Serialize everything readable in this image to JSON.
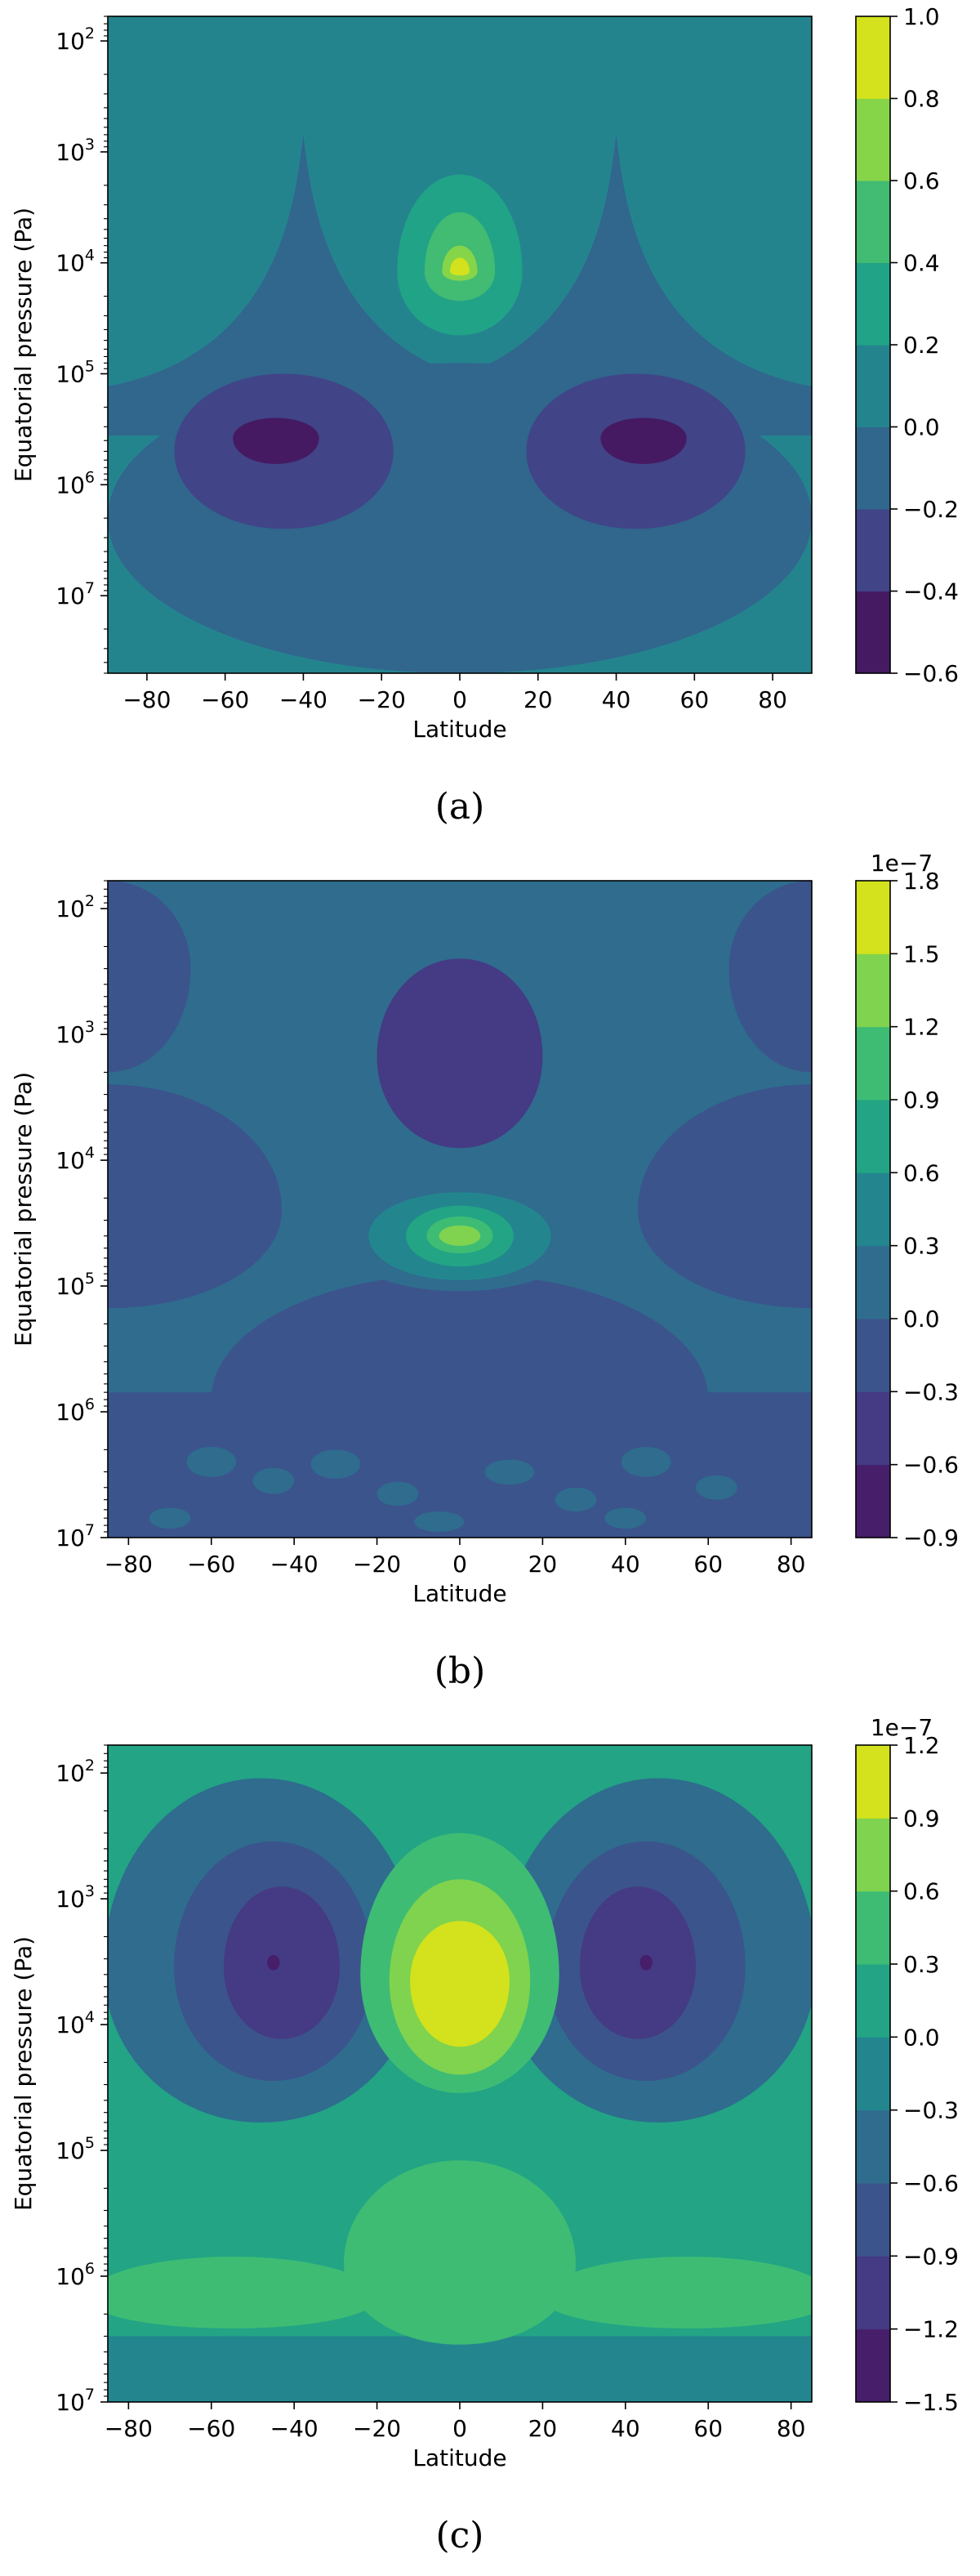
{
  "chart_data": [
    {
      "type": "heatmap",
      "caption": "(a)",
      "xlabel": "Latitude",
      "ylabel": "Equatorial pressure (Pa)",
      "xlim": [
        -90,
        90
      ],
      "xticks": [
        -80,
        -60,
        -40,
        -20,
        0,
        20,
        40,
        60,
        80
      ],
      "y_scale": "log",
      "ylim": [
        50000000.0,
        60
      ],
      "yticks": [
        100,
        1000,
        10000,
        100000,
        1000000,
        10000000
      ],
      "ytick_labels": [
        {
          "b": "10",
          "e": "2"
        },
        {
          "b": "10",
          "e": "3"
        },
        {
          "b": "10",
          "e": "4"
        },
        {
          "b": "10",
          "e": "5"
        },
        {
          "b": "10",
          "e": "6"
        },
        {
          "b": "10",
          "e": "7"
        }
      ],
      "background_level": 3,
      "colorbar": {
        "levels": [
          -0.6,
          -0.4,
          -0.2,
          0.0,
          0.2,
          0.4,
          0.6,
          0.8,
          1.0
        ],
        "labels": [
          "-0.6",
          "-0.4",
          "-0.2",
          "0.0",
          "0.2",
          "0.4",
          "0.6",
          "0.8",
          "1.0"
        ],
        "colors": [
          "#451a62",
          "#414487",
          "#31668d",
          "#24848e",
          "#21a387",
          "#42bb73",
          "#86d549",
          "#d3e21c"
        ],
        "offset": ""
      },
      "features": [
        {
          "level": 2,
          "shape": "cone",
          "lat": -40,
          "p_top": 700,
          "p_base": 130000,
          "half_width_base": 50
        },
        {
          "level": 2,
          "shape": "cone",
          "lat": 40,
          "p_top": 700,
          "p_base": 130000,
          "half_width_base": 50
        },
        {
          "level": 2,
          "shape": "blob",
          "lat": 0,
          "p": 2000000,
          "half_width": 90,
          "p_min": 80000,
          "p_max": 50000000
        },
        {
          "level": 1,
          "shape": "blob",
          "lat": -45,
          "p": 500000,
          "half_width": 28,
          "p_min": 100000,
          "p_max": 2500000
        },
        {
          "level": 1,
          "shape": "blob",
          "lat": 45,
          "p": 500000,
          "half_width": 28,
          "p_min": 100000,
          "p_max": 2500000
        },
        {
          "level": 0,
          "shape": "blob",
          "lat": -47,
          "p": 380000,
          "half_width": 11,
          "p_min": 250000,
          "p_max": 650000
        },
        {
          "level": 0,
          "shape": "blob",
          "lat": 47,
          "p": 380000,
          "half_width": 11,
          "p_min": 250000,
          "p_max": 650000
        },
        {
          "level": 4,
          "shape": "blob",
          "lat": 0,
          "p": 12000,
          "half_width": 16,
          "p_min": 1600,
          "p_max": 45000
        },
        {
          "level": 5,
          "shape": "blob",
          "lat": 0,
          "p": 12000,
          "half_width": 9,
          "p_min": 3500,
          "p_max": 22000
        },
        {
          "level": 6,
          "shape": "blob",
          "lat": 0,
          "p": 12000,
          "half_width": 4.5,
          "p_min": 7000,
          "p_max": 14500
        },
        {
          "level": 7,
          "shape": "blob",
          "lat": 0,
          "p": 12000,
          "half_width": 2.5,
          "p_min": 9000,
          "p_max": 13000
        }
      ]
    },
    {
      "type": "heatmap",
      "caption": "(b)",
      "xlabel": "Latitude",
      "ylabel": "Equatorial pressure (Pa)",
      "xlim": [
        -85,
        85
      ],
      "xticks": [
        -80,
        -60,
        -40,
        -20,
        0,
        20,
        40,
        60,
        80
      ],
      "y_scale": "log",
      "ylim": [
        10000000.0,
        60
      ],
      "yticks": [
        100,
        1000,
        10000,
        100000,
        1000000,
        10000000
      ],
      "ytick_labels": [
        {
          "b": "10",
          "e": "2"
        },
        {
          "b": "10",
          "e": "3"
        },
        {
          "b": "10",
          "e": "4"
        },
        {
          "b": "10",
          "e": "5"
        },
        {
          "b": "10",
          "e": "6"
        },
        {
          "b": "10",
          "e": "7"
        }
      ],
      "background_level": 3,
      "colorbar": {
        "levels": [
          -0.9,
          -0.6,
          -0.3,
          0.0,
          0.3,
          0.6,
          0.9,
          1.2,
          1.5,
          1.8
        ],
        "labels": [
          "-0.9",
          "-0.6",
          "-0.3",
          "0.0",
          "0.3",
          "0.6",
          "0.9",
          "1.2",
          "1.5",
          "1.8"
        ],
        "colors": [
          "#461e6a",
          "#453a84",
          "#3b548c",
          "#2f6c8e",
          "#23868e",
          "#22a485",
          "#3ebc74",
          "#7fd34e",
          "#d3e21c"
        ],
        "offset": "1e-7"
      },
      "features": [
        {
          "level": 2,
          "shape": "band",
          "p_min": 700000,
          "p_max": 1000000000
        },
        {
          "level": 2,
          "shape": "blob",
          "lat": 0,
          "p": 800000,
          "half_width": 60,
          "p_min": 80000,
          "p_max": 2500000
        },
        {
          "level": 2,
          "shape": "blob",
          "lat": -85,
          "p": 25000,
          "half_width": 42,
          "p_min": 2500,
          "p_max": 150000
        },
        {
          "level": 2,
          "shape": "blob",
          "lat": 85,
          "p": 25000,
          "half_width": 42,
          "p_min": 2500,
          "p_max": 150000
        },
        {
          "level": 2,
          "shape": "blob",
          "lat": -85,
          "p": 300,
          "half_width": 20,
          "p_min": 60,
          "p_max": 2000
        },
        {
          "level": 2,
          "shape": "blob",
          "lat": 85,
          "p": 300,
          "half_width": 20,
          "p_min": 60,
          "p_max": 2000
        },
        {
          "level": 3,
          "shape": "blob",
          "lat": 0,
          "p": 800,
          "half_width": 48,
          "p_min": 60,
          "p_max": 40000
        },
        {
          "level": 1,
          "shape": "blob",
          "lat": 0,
          "p": 1500,
          "half_width": 20,
          "p_min": 250,
          "p_max": 8000
        },
        {
          "level": 3,
          "shape": "blob",
          "lat": 0,
          "p": 40000,
          "half_width": 30,
          "p_min": 15000,
          "p_max": 110000
        },
        {
          "level": 4,
          "shape": "blob",
          "lat": 0,
          "p": 40000,
          "half_width": 22,
          "p_min": 18000,
          "p_max": 90000
        },
        {
          "level": 5,
          "shape": "blob",
          "lat": 0,
          "p": 40000,
          "half_width": 13,
          "p_min": 23000,
          "p_max": 70000
        },
        {
          "level": 6,
          "shape": "blob",
          "lat": 0,
          "p": 40000,
          "half_width": 8,
          "p_min": 28000,
          "p_max": 55000
        },
        {
          "level": 7,
          "shape": "blob",
          "lat": 0,
          "p": 40000,
          "half_width": 5,
          "p_min": 33000,
          "p_max": 48000
        },
        {
          "level": 3,
          "shape": "blob",
          "lat": -60,
          "p": 2500000,
          "half_width": 6,
          "p_min": 1900000,
          "p_max": 3300000
        },
        {
          "level": 3,
          "shape": "blob",
          "lat": -45,
          "p": 3500000,
          "half_width": 5,
          "p_min": 2800000,
          "p_max": 4500000
        },
        {
          "level": 3,
          "shape": "blob",
          "lat": -30,
          "p": 2600000,
          "half_width": 6,
          "p_min": 2000000,
          "p_max": 3400000
        },
        {
          "level": 3,
          "shape": "blob",
          "lat": -15,
          "p": 4500000,
          "half_width": 5,
          "p_min": 3600000,
          "p_max": 5600000
        },
        {
          "level": 3,
          "shape": "blob",
          "lat": 12,
          "p": 3000000,
          "half_width": 6,
          "p_min": 2400000,
          "p_max": 3800000
        },
        {
          "level": 3,
          "shape": "blob",
          "lat": 28,
          "p": 5000000,
          "half_width": 5,
          "p_min": 4000000,
          "p_max": 6200000
        },
        {
          "level": 3,
          "shape": "blob",
          "lat": 45,
          "p": 2500000,
          "half_width": 6,
          "p_min": 1900000,
          "p_max": 3300000
        },
        {
          "level": 3,
          "shape": "blob",
          "lat": 62,
          "p": 4000000,
          "half_width": 5,
          "p_min": 3200000,
          "p_max": 5000000
        },
        {
          "level": 3,
          "shape": "blob",
          "lat": -70,
          "p": 7000000,
          "half_width": 5,
          "p_min": 5800000,
          "p_max": 8500000
        },
        {
          "level": 3,
          "shape": "blob",
          "lat": -5,
          "p": 7500000,
          "half_width": 6,
          "p_min": 6200000,
          "p_max": 9000000
        },
        {
          "level": 3,
          "shape": "blob",
          "lat": 40,
          "p": 7000000,
          "half_width": 5,
          "p_min": 5800000,
          "p_max": 8500000
        }
      ]
    },
    {
      "type": "heatmap",
      "caption": "(c)",
      "xlabel": "Latitude",
      "ylabel": "Equatorial pressure (Pa)",
      "xlim": [
        -85,
        85
      ],
      "xticks": [
        -80,
        -60,
        -40,
        -20,
        0,
        20,
        40,
        60,
        80
      ],
      "y_scale": "log",
      "ylim": [
        10000000.0,
        60
      ],
      "yticks": [
        100,
        1000,
        10000,
        100000,
        1000000,
        10000000
      ],
      "ytick_labels": [
        {
          "b": "10",
          "e": "2"
        },
        {
          "b": "10",
          "e": "3"
        },
        {
          "b": "10",
          "e": "4"
        },
        {
          "b": "10",
          "e": "5"
        },
        {
          "b": "10",
          "e": "6"
        },
        {
          "b": "10",
          "e": "7"
        }
      ],
      "background_level": 5,
      "colorbar": {
        "levels": [
          -1.5,
          -1.2,
          -0.9,
          -0.6,
          -0.3,
          0.0,
          0.3,
          0.6,
          0.9,
          1.2
        ],
        "labels": [
          "-1.5",
          "-1.2",
          "-0.9",
          "-0.6",
          "-0.3",
          "0.0",
          "0.3",
          "0.6",
          "0.9",
          "1.2"
        ],
        "colors": [
          "#461e6a",
          "#453a84",
          "#3b548c",
          "#2f6c8e",
          "#23868e",
          "#22a485",
          "#3ebc74",
          "#7fd34e",
          "#d3e21c"
        ],
        "offset": "1e-7"
      },
      "features": [
        {
          "level": 4,
          "shape": "band",
          "p_min": 3000000,
          "p_max": 1000000000
        },
        {
          "level": 6,
          "shape": "blob",
          "lat": 0,
          "p": 800000,
          "half_width": 28,
          "p_min": 120000,
          "p_max": 3500000
        },
        {
          "level": 6,
          "shape": "blob",
          "lat": -55,
          "p": 1500000,
          "half_width": 35,
          "p_min": 700000,
          "p_max": 2600000
        },
        {
          "level": 6,
          "shape": "blob",
          "lat": 55,
          "p": 1500000,
          "half_width": 35,
          "p_min": 700000,
          "p_max": 2600000
        },
        {
          "level": 3,
          "shape": "blob",
          "lat": -48,
          "p": 3500,
          "half_width": 38,
          "p_min": 110,
          "p_max": 60000
        },
        {
          "level": 3,
          "shape": "blob",
          "lat": 48,
          "p": 3500,
          "half_width": 38,
          "p_min": 110,
          "p_max": 60000
        },
        {
          "level": 2,
          "shape": "blob",
          "lat": -45,
          "p": 3500,
          "half_width": 24,
          "p_min": 350,
          "p_max": 28000
        },
        {
          "level": 2,
          "shape": "blob",
          "lat": 45,
          "p": 3500,
          "half_width": 24,
          "p_min": 350,
          "p_max": 28000
        },
        {
          "level": 1,
          "shape": "blob",
          "lat": -43,
          "p": 3500,
          "half_width": 14,
          "p_min": 800,
          "p_max": 13000
        },
        {
          "level": 1,
          "shape": "blob",
          "lat": 43,
          "p": 3500,
          "half_width": 14,
          "p_min": 800,
          "p_max": 13000
        },
        {
          "level": 0,
          "shape": "blob",
          "lat": -45,
          "p": 3200,
          "half_width": 1.5,
          "p_min": 2800,
          "p_max": 3700
        },
        {
          "level": 0,
          "shape": "blob",
          "lat": 45,
          "p": 3200,
          "half_width": 1.5,
          "p_min": 2800,
          "p_max": 3700
        },
        {
          "level": 6,
          "shape": "blob",
          "lat": 0,
          "p": 4000,
          "half_width": 24,
          "p_min": 300,
          "p_max": 35000
        },
        {
          "level": 7,
          "shape": "blob",
          "lat": 0,
          "p": 4500,
          "half_width": 17,
          "p_min": 700,
          "p_max": 25000
        },
        {
          "level": 8,
          "shape": "blob",
          "lat": 0,
          "p": 4500,
          "half_width": 12,
          "p_min": 1500,
          "p_max": 15000
        },
        {
          "level": 4,
          "shape": "blob",
          "lat": -60,
          "p": 7500000,
          "half_width": 5,
          "p_min": 6300000,
          "p_max": 9000000
        },
        {
          "level": 4,
          "shape": "blob",
          "lat": 0,
          "p": 4500000,
          "half_width": 8,
          "p_min": 3500000,
          "p_max": 5600000
        },
        {
          "level": 4,
          "shape": "blob",
          "lat": 55,
          "p": 7500000,
          "half_width": 5,
          "p_min": 6300000,
          "p_max": 9000000
        }
      ]
    }
  ]
}
